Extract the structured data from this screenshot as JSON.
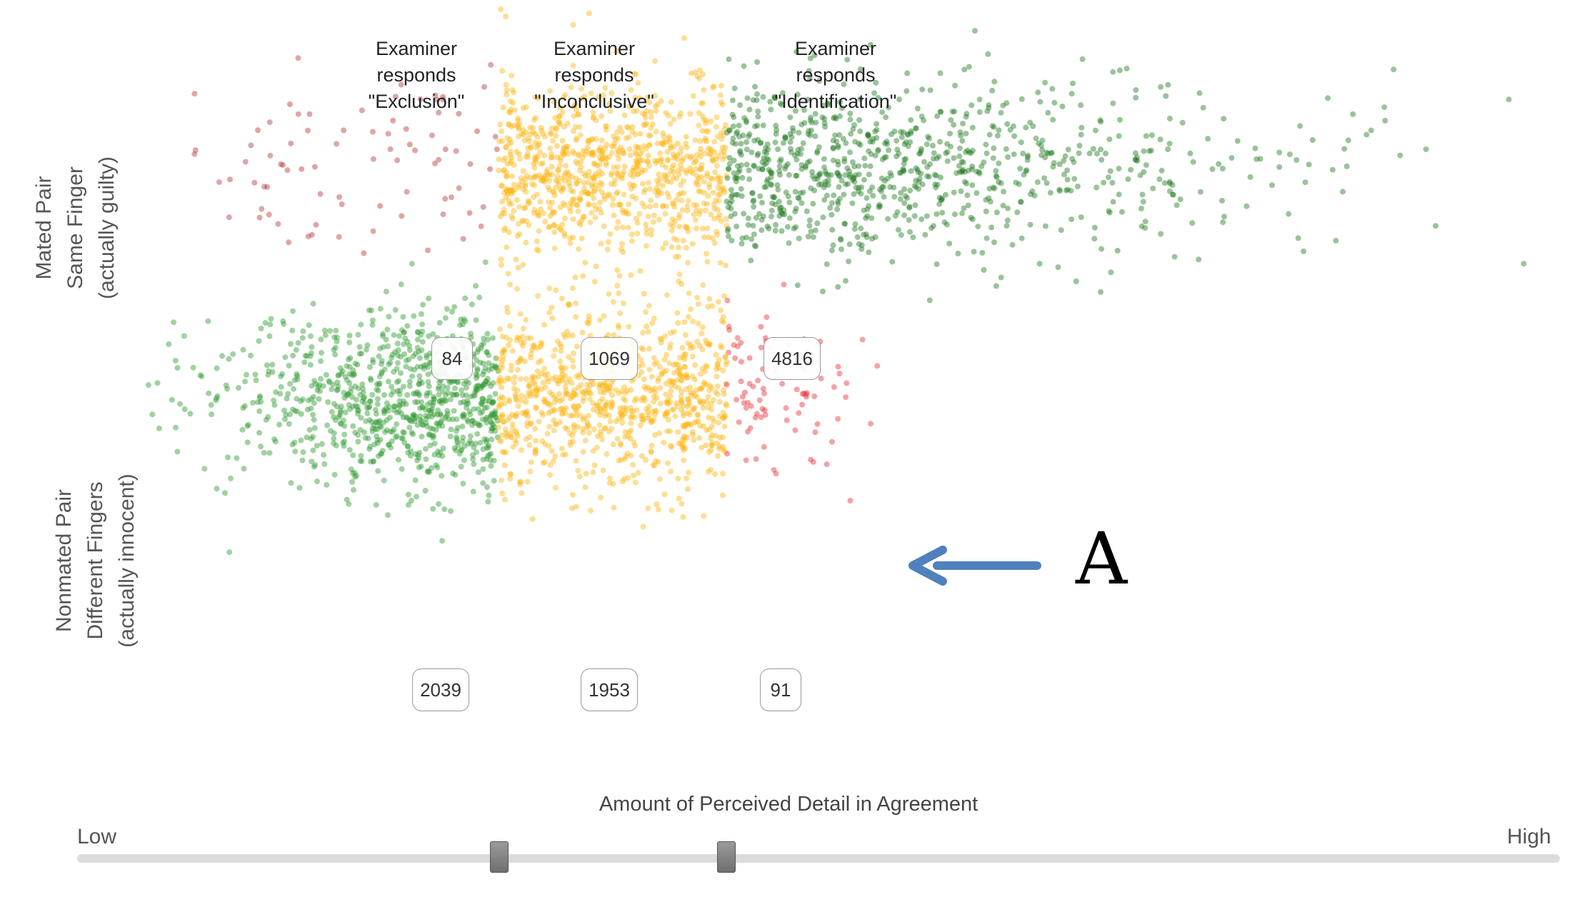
{
  "headers": {
    "exclusion": [
      "Examiner",
      "responds",
      "\"Exclusion\""
    ],
    "inconclusive": [
      "Examiner",
      "responds",
      "\"Inconclusive\""
    ],
    "identification": [
      "Examiner",
      "responds",
      "\"Identification\""
    ]
  },
  "rows": {
    "mated": [
      "Mated Pair",
      "Same Finger",
      "(actually guilty)"
    ],
    "nonmated": [
      "Nonmated Pair",
      "Different Fingers",
      "(actually innocent)"
    ]
  },
  "axis": {
    "title": "Amount of Perceived Detail in Agreement",
    "low_label": "Low",
    "high_label": "High"
  },
  "annotation": {
    "letter": "A",
    "arrow_color": "#4f81bd"
  },
  "colors": {
    "dark_green": "#1e7a1e",
    "green": "#2e9a2e",
    "yellow": "#fdb515",
    "dark_red": "#b53a3a",
    "red": "#e8303a"
  },
  "chart_data": {
    "type": "scatter",
    "x_scale": "ordinal: Low to High perceived detail",
    "thresholds": {
      "exclusion_upper": 0.284,
      "identification_lower": 0.438
    },
    "series": [
      {
        "row": "Mated Pair",
        "segments": [
          {
            "response": "Exclusion",
            "count": 84,
            "count_label": "84",
            "color": "#b53a3a"
          },
          {
            "response": "Inconclusive",
            "count": 1069,
            "count_label": "1069",
            "color": "#fdb515"
          },
          {
            "response": "Identification",
            "count": 4816,
            "count_label": "4816",
            "color": "#1e7a1e"
          }
        ]
      },
      {
        "row": "Nonmated Pair",
        "segments": [
          {
            "response": "Exclusion",
            "count": 2039,
            "count_label": "2039",
            "color": "#2e9a2e"
          },
          {
            "response": "Inconclusive",
            "count": 1953,
            "count_label": "1953",
            "color": "#fdb515"
          },
          {
            "response": "Identification",
            "count": 91,
            "count_label": "91",
            "color": "#e8303a"
          }
        ]
      }
    ]
  }
}
